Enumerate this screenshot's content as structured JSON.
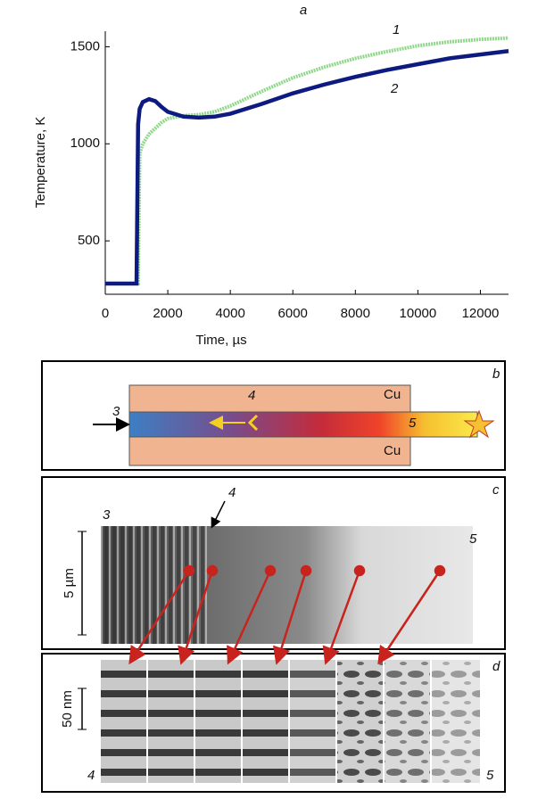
{
  "chart_data": {
    "type": "line",
    "title": "a",
    "x_label": "Time, µs",
    "y_label": "Temperature, K",
    "x": [
      0,
      500,
      1000,
      1050,
      1100,
      1200,
      1400,
      1600,
      1800,
      2000,
      2500,
      3000,
      3500,
      4000,
      5000,
      6000,
      7000,
      8000,
      9000,
      10000,
      11000,
      12000,
      12900
    ],
    "series": [
      {
        "name": "1",
        "color": "#8fd88a",
        "values": [
          280,
          280,
          280,
          280,
          950,
          1000,
          1050,
          1080,
          1110,
          1130,
          1145,
          1150,
          1165,
          1195,
          1270,
          1340,
          1395,
          1440,
          1475,
          1505,
          1525,
          1538,
          1545
        ]
      },
      {
        "name": "2",
        "color": "#0d1a80",
        "values": [
          280,
          280,
          280,
          1100,
          1180,
          1215,
          1230,
          1220,
          1190,
          1165,
          1140,
          1135,
          1140,
          1155,
          1205,
          1260,
          1305,
          1345,
          1380,
          1410,
          1440,
          1460,
          1478
        ]
      }
    ],
    "xlim": [
      0,
      12900
    ],
    "ylim": [
      225,
      1580
    ],
    "xticks": [
      0,
      2000,
      4000,
      6000,
      8000,
      10000,
      12000
    ],
    "yticks": [
      500,
      1000,
      1500
    ]
  },
  "panel_b": {
    "letter": "b",
    "labels": [
      "3",
      "4",
      "5"
    ],
    "top_material": "Cu",
    "bottom_material": "Cu"
  },
  "panel_c": {
    "letter": "c",
    "labels": [
      "3",
      "4",
      "5"
    ],
    "scale": "5 µm"
  },
  "panel_d": {
    "letter": "d",
    "labels": [
      "4",
      "5"
    ],
    "scale": "50 nm"
  }
}
